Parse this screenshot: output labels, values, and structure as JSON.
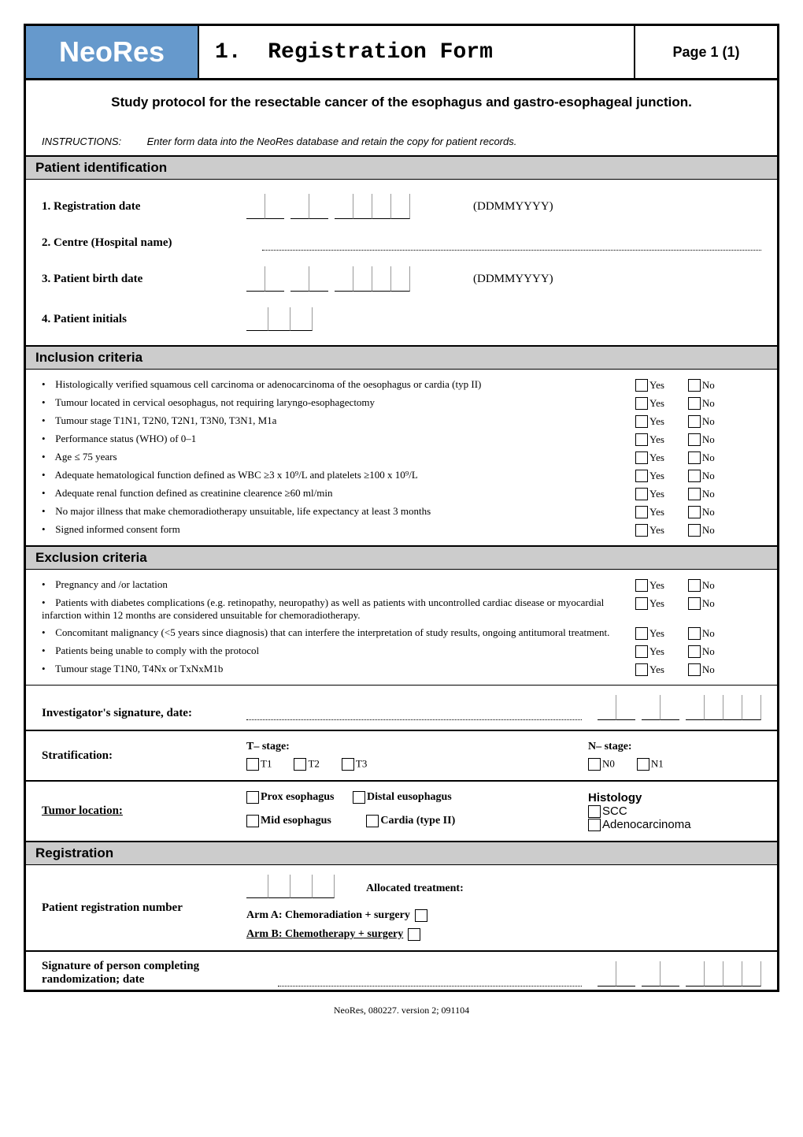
{
  "header": {
    "logo": "NeoRes",
    "form_number": "1.",
    "title": "Registration Form",
    "page": "Page 1 (1)"
  },
  "subtitle": "Study protocol for the resectable cancer of the esophagus and gastro-esophageal junction.",
  "instructions": {
    "label": "INSTRUCTIONS:",
    "text": "Enter form data into the NeoRes database and retain the copy for patient records."
  },
  "sections": {
    "patient_id": {
      "title": "Patient identification",
      "fields": {
        "reg_date": {
          "label": "1.  Registration date",
          "format": "(DDMMYYYY)"
        },
        "centre": {
          "label": "2. Centre (Hospital name)"
        },
        "birth": {
          "label": "3.  Patient birth date",
          "format": "(DDMMYYYY)"
        },
        "initials": {
          "label": "4. Patient initials"
        }
      }
    },
    "inclusion": {
      "title": "Inclusion criteria",
      "items": [
        "Histologically verified squamous cell carcinoma or adenocarcinoma of the oesophagus or cardia (typ II)",
        "Tumour located in cervical oesophagus, not requiring laryngo-esophagectomy",
        "Tumour stage T1N1, T2N0, T2N1, T3N0, T3N1, M1a",
        "Performance status (WHO) of 0–1",
        "Age ≤ 75 years",
        "Adequate hematological function defined as WBC ≥3 x 10⁹/L and platelets ≥100 x 10⁹/L",
        "Adequate renal function defined as creatinine clearence ≥60 ml/min",
        "No major illness that make chemoradiotherapy unsuitable, life expectancy at least 3 months",
        "Signed informed consent form"
      ]
    },
    "exclusion": {
      "title": "Exclusion criteria",
      "items": [
        "Pregnancy and /or lactation",
        "Patients with diabetes complications (e.g. retinopathy, neuropathy) as well as patients with uncontrolled cardiac disease or myocardial infarction within 12 months are considered unsuitable for chemoradiotherapy.",
        "Concomitant malignancy (<5 years since diagnosis) that can interfere the interpretation of study results, ongoing antitumoral treatment.",
        "Patients being unable to comply with the protocol",
        "Tumour stage T1N0, T4Nx or TxNxM1b"
      ]
    },
    "investigator_sig": "Investigator's signature, date:",
    "stratification": {
      "label": "Stratification:",
      "t_stage": {
        "title": "T– stage:",
        "opts": [
          "T1",
          "T2",
          "T3"
        ]
      },
      "n_stage": {
        "title": "N– stage:",
        "opts": [
          "N0",
          "N1"
        ]
      }
    },
    "tumor_location": {
      "label": "Tumor location:",
      "opts": [
        "Prox esophagus",
        "Distal eusophagus",
        "Mid esophagus",
        "Cardia (type II)"
      ],
      "histology": {
        "title": "Histology",
        "opts": [
          "SCC",
          "Adenocarcinoma"
        ]
      }
    },
    "registration": {
      "title": "Registration",
      "reg_num_label": "Patient registration number",
      "allocated": "Allocated treatment:",
      "arm_a": "Arm A: Chemoradiation + surgery",
      "arm_b": "Arm B: Chemotherapy + surgery"
    },
    "final_sig": "Signature of person completing randomization; date"
  },
  "yn": {
    "yes": "Yes",
    "no": "No"
  },
  "footer": "NeoRes, 080227. version 2; 091104"
}
